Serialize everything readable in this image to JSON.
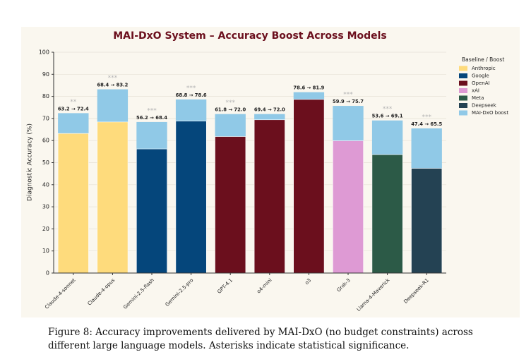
{
  "chart_data": {
    "type": "bar",
    "title": "MAI-DxO System – Accuracy Boost Across Models",
    "ylabel": "Diagnostic Accuracy (%)",
    "categories": [
      "Claude-4-sonnet",
      "Claude-4-opus",
      "Gemini-2.5-flash",
      "Gemini-2.5-pro",
      "GPT-4.1",
      "o4-mini",
      "o3",
      "Grok-3",
      "Llama-4-Maverick",
      "Deepseek-R1"
    ],
    "series": [
      {
        "values": [
          63.2,
          68.4,
          56.2,
          68.8,
          61.8,
          69.4,
          78.6,
          59.9,
          53.6,
          47.4
        ],
        "colors": [
          "#fedb7c",
          "#fedb7c",
          "#05467b",
          "#05467b",
          "#6b0f1d",
          "#6b0f1d",
          "#6b0f1d",
          "#de9ad4",
          "#2c5a47",
          "#244253"
        ]
      },
      {
        "name": "MAI-DxO boost",
        "color": "#90c9e7",
        "values": [
          72.4,
          83.2,
          68.4,
          78.6,
          72.0,
          72.0,
          81.9,
          75.7,
          69.1,
          65.5
        ],
        "value_labels": [
          "63.2 → 72.4",
          "68.4 → 83.2",
          "56.2 → 68.4",
          "68.8 → 78.6",
          "61.8 → 72.0",
          "69.4 → 72.0",
          "78.6 → 81.9",
          "59.9 → 75.7",
          "53.6 → 69.1",
          "47.4 → 65.5"
        ]
      }
    ],
    "significance": [
      "**",
      "***",
      "***",
      "***",
      "***",
      null,
      null,
      "***",
      "***",
      "***"
    ],
    "legend": {
      "title": "Baseline / Boost",
      "position": "upper right",
      "entries": [
        {
          "name": "Anthropic",
          "color": "#fedb7c"
        },
        {
          "name": "Google",
          "color": "#05467b"
        },
        {
          "name": "OpenAI",
          "color": "#6b0f1d"
        },
        {
          "name": "xAI",
          "color": "#de9ad4"
        },
        {
          "name": "Meta",
          "color": "#2c5a47"
        },
        {
          "name": "Deepseek",
          "color": "#244253"
        },
        {
          "name": "MAI-DxO boost",
          "color": "#90c9e7"
        }
      ]
    },
    "ylim": [
      0,
      100
    ],
    "yticks": [
      0,
      10,
      20,
      30,
      40,
      50,
      60,
      70,
      80,
      90,
      100
    ],
    "grid": true
  },
  "caption": "Figure 8: Accuracy improvements delivered by MAI-DxO (no budget constraints) across different large language models. Asterisks indicate statistical significance."
}
